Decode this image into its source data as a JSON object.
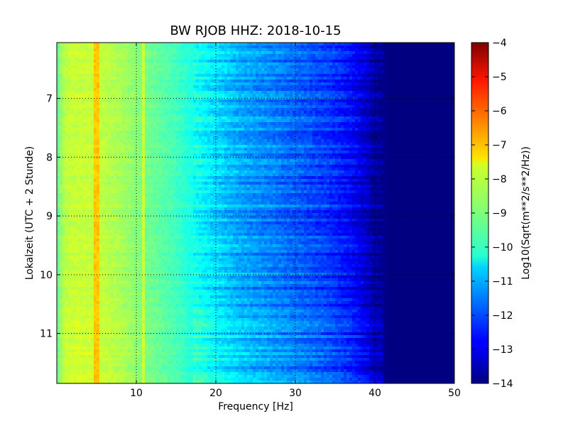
{
  "chart_data": {
    "type": "heatmap",
    "title": "BW RJOB HHZ: 2018-10-15",
    "xlabel": "Frequency [Hz]",
    "ylabel": "Lokalzeit (UTC + 2 Stunde)",
    "xlim": [
      0,
      50
    ],
    "ylim": [
      11.85,
      6.05
    ],
    "y_inverted": true,
    "xticks": [
      10,
      20,
      30,
      40,
      50
    ],
    "yticks": [
      7,
      8,
      9,
      10,
      11
    ],
    "grid": true,
    "colormap": "jet",
    "colorbar": {
      "label": "Log10(Sqrt(m**2/s**2/Hz))",
      "range": [
        -14,
        -4
      ],
      "ticks": [
        -4,
        -5,
        -6,
        -7,
        -8,
        -9,
        -10,
        -11,
        -12,
        -13,
        -14
      ]
    },
    "frequency_profile": {
      "freq_hz": [
        0,
        1,
        2,
        5,
        8,
        10,
        12,
        15,
        17,
        20,
        23,
        26,
        30,
        34,
        37,
        39,
        40,
        42,
        50
      ],
      "log_value": [
        -9.3,
        -8.4,
        -8.3,
        -8.3,
        -8.6,
        -8.9,
        -9.2,
        -9.6,
        -10.0,
        -10.6,
        -11.1,
        -11.4,
        -11.8,
        -12.2,
        -12.7,
        -13.3,
        -13.7,
        -14.0,
        -14.0
      ]
    },
    "notable_features": [
      {
        "label": "strong narrow band",
        "freq_hz": 5,
        "log_value": -7.2
      },
      {
        "label": "narrow band",
        "freq_hz": 11,
        "log_value": -8.3
      }
    ]
  }
}
